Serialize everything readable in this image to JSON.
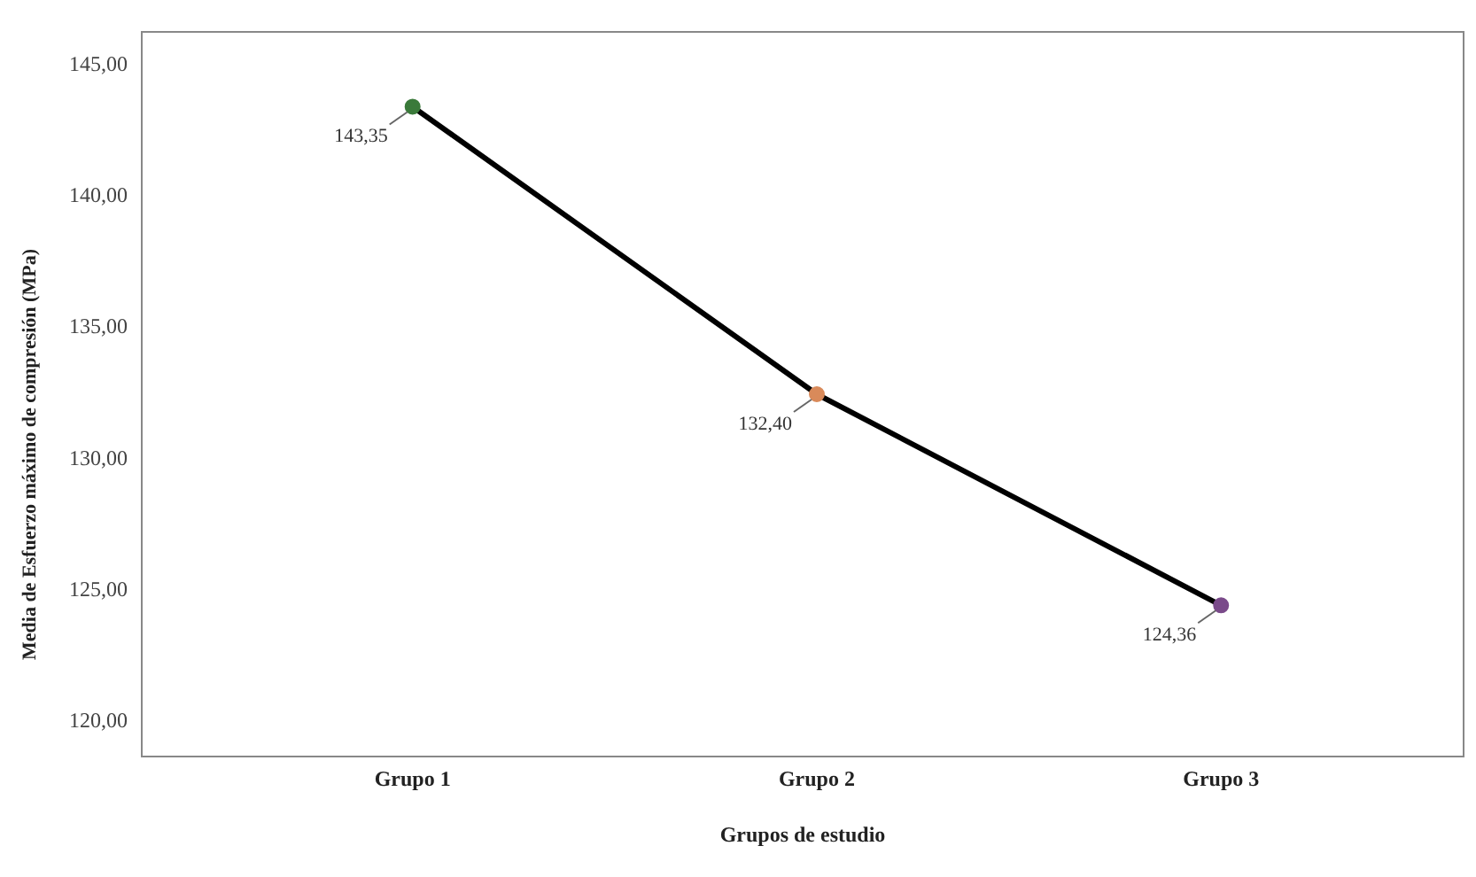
{
  "chart_data": {
    "type": "line",
    "xlabel": "Grupos de estudio",
    "ylabel": "Media de Esfuerzo máximo de compresión (MPa)",
    "categories": [
      "Grupo 1",
      "Grupo 2",
      "Grupo 3"
    ],
    "series": [
      {
        "color": "#000000",
        "colors": [
          "#3a7a3a",
          "#d98a5a",
          "#7a4a8a"
        ],
        "values": [
          143.35,
          132.4,
          124.36
        ],
        "value_labels": [
          "143,35",
          "132,40",
          "124,36"
        ]
      }
    ],
    "ylim": [
      118.6,
      146.2
    ],
    "yticks": [
      {
        "value": 120,
        "label": "120,00"
      },
      {
        "value": 125,
        "label": "125,00"
      },
      {
        "value": 130,
        "label": "130,00"
      },
      {
        "value": 135,
        "label": "135,00"
      },
      {
        "value": 140,
        "label": "140,00"
      },
      {
        "value": 145,
        "label": "145,00"
      }
    ],
    "marker": "circle",
    "line_style": "solid",
    "grid": false,
    "legend": false
  }
}
